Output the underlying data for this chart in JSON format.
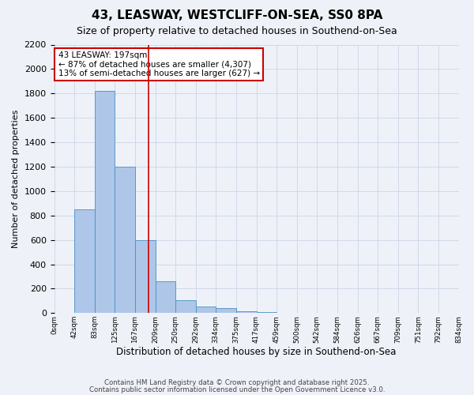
{
  "title": "43, LEASWAY, WESTCLIFF-ON-SEA, SS0 8PA",
  "subtitle": "Size of property relative to detached houses in Southend-on-Sea",
  "xlabel": "Distribution of detached houses by size in Southend-on-Sea",
  "ylabel": "Number of detached properties",
  "bar_color": "#aec6e8",
  "bar_edge_color": "#4a90c4",
  "grid_color": "#d0d8e8",
  "background_color": "#eef2f8",
  "annotation_line1": "43 LEASWAY: 197sqm",
  "annotation_line2": "← 87% of detached houses are smaller (4,307)",
  "annotation_line3": "13% of semi-detached houses are larger (627) →",
  "annotation_box_color": "#cc0000",
  "vline_color": "#cc0000",
  "vline_x": 4.67,
  "footnote1": "Contains HM Land Registry data © Crown copyright and database right 2025.",
  "footnote2": "Contains public sector information licensed under the Open Government Licence v3.0.",
  "categories": [
    "0sqm",
    "42sqm",
    "83sqm",
    "125sqm",
    "167sqm",
    "209sqm",
    "250sqm",
    "292sqm",
    "334sqm",
    "375sqm",
    "417sqm",
    "459sqm",
    "500sqm",
    "542sqm",
    "584sqm",
    "626sqm",
    "667sqm",
    "709sqm",
    "751sqm",
    "792sqm",
    "834sqm"
  ],
  "bar_heights": [
    0,
    850,
    1820,
    1200,
    600,
    260,
    105,
    55,
    40,
    18,
    8,
    5,
    3,
    2,
    1,
    0,
    0,
    0,
    0,
    0
  ],
  "ylim": [
    0,
    2200
  ],
  "yticks": [
    0,
    200,
    400,
    600,
    800,
    1000,
    1200,
    1400,
    1600,
    1800,
    2000,
    2200
  ]
}
